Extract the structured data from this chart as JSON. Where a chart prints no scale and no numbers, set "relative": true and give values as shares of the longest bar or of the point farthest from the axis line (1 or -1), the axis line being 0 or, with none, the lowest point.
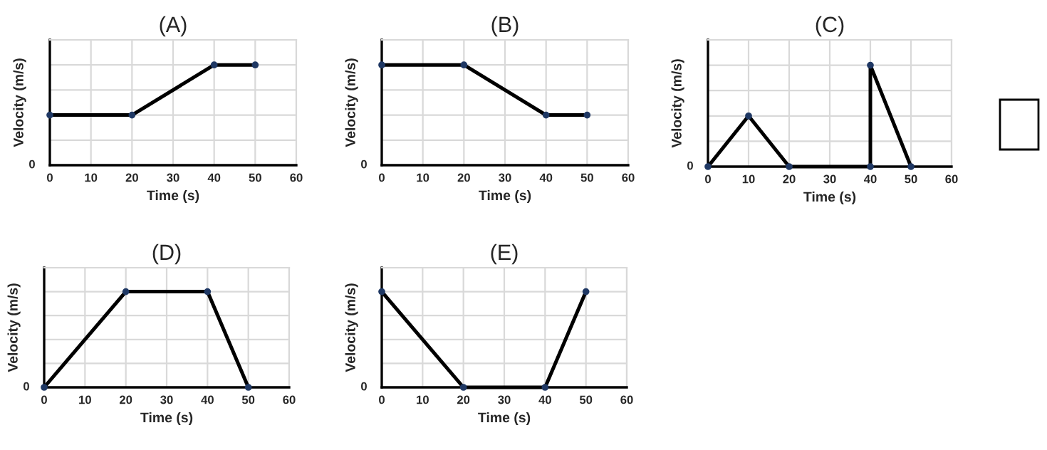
{
  "chart_data": [
    {
      "type": "line",
      "title": "(A)",
      "xlabel": "Time (s)",
      "ylabel": "Velocity (m/s)",
      "relative": true,
      "x": [
        0,
        20,
        40,
        50
      ],
      "series": [
        {
          "color": "#000000",
          "values": [
            0.5,
            0.5,
            1,
            1
          ]
        }
      ],
      "xlim": [
        0,
        60
      ],
      "xticks": [
        0,
        10,
        20,
        30,
        40,
        50,
        60
      ],
      "grid": true,
      "marker": "circle",
      "line_style": "solid",
      "annotations": [
        "0"
      ]
    },
    {
      "type": "line",
      "title": "(B)",
      "xlabel": "Time (s)",
      "ylabel": "Velocity (m/s)",
      "relative": true,
      "x": [
        0,
        20,
        40,
        50
      ],
      "series": [
        {
          "color": "#000000",
          "values": [
            1,
            1,
            0.5,
            0.5
          ]
        }
      ],
      "xlim": [
        0,
        60
      ],
      "xticks": [
        0,
        10,
        20,
        30,
        40,
        50,
        60
      ],
      "grid": true,
      "marker": "circle",
      "line_style": "solid",
      "annotations": [
        "0"
      ]
    },
    {
      "type": "line",
      "title": "(C)",
      "xlabel": "Time (s)",
      "ylabel": "Velocity (m/s)",
      "relative": true,
      "x": [
        0,
        10,
        20,
        40,
        40,
        50
      ],
      "series": [
        {
          "color": "#000000",
          "values": [
            0,
            0.5,
            0,
            0,
            1,
            0
          ]
        }
      ],
      "xlim": [
        0,
        60
      ],
      "xticks": [
        0,
        10,
        20,
        30,
        40,
        50,
        60
      ],
      "grid": true,
      "marker": "circle",
      "line_style": "solid",
      "annotations": [
        "0"
      ]
    },
    {
      "type": "line",
      "title": "(D)",
      "xlabel": "Time (s)",
      "ylabel": "Velocity (m/s)",
      "relative": true,
      "x": [
        0,
        20,
        40,
        50
      ],
      "series": [
        {
          "color": "#000000",
          "values": [
            0,
            1,
            1,
            0
          ]
        }
      ],
      "xlim": [
        0,
        60
      ],
      "xticks": [
        0,
        10,
        20,
        30,
        40,
        50,
        60
      ],
      "grid": true,
      "marker": "circle",
      "line_style": "solid",
      "annotations": [
        "0"
      ]
    },
    {
      "type": "line",
      "title": "(E)",
      "xlabel": "Time (s)",
      "ylabel": "Velocity (m/s)",
      "relative": true,
      "x": [
        0,
        20,
        40,
        50
      ],
      "series": [
        {
          "color": "#000000",
          "values": [
            1,
            0,
            0,
            1
          ]
        }
      ],
      "xlim": [
        0,
        60
      ],
      "xticks": [
        0,
        10,
        20,
        30,
        40,
        50,
        60
      ],
      "grid": true,
      "marker": "circle",
      "line_style": "solid",
      "annotations": [
        "0"
      ]
    }
  ]
}
